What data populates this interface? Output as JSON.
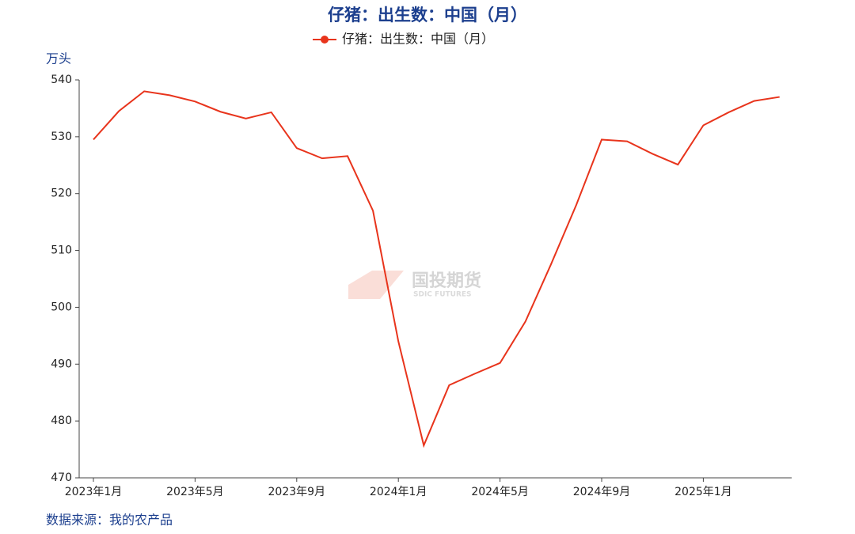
{
  "chart_data": {
    "type": "line",
    "title": "仔猪：出生数：中国（月）",
    "y_label": "万头",
    "source": "数据来源：我的农产品",
    "watermark": {
      "name": "国投期货",
      "subtitle": "SDIC FUTURES"
    },
    "categories": [
      "2023年1月",
      null,
      null,
      null,
      "2023年5月",
      null,
      null,
      null,
      "2023年9月",
      null,
      null,
      null,
      "2024年1月",
      null,
      null,
      null,
      "2024年5月",
      null,
      null,
      null,
      "2024年9月",
      null,
      null,
      null,
      "2025年1月",
      null,
      null,
      null
    ],
    "series": [
      {
        "name": "仔猪：出生数：中国（月）",
        "color": "#e8341c",
        "values": [
          529.5,
          534.5,
          538,
          537.3,
          536.2,
          534.4,
          533.2,
          534.3,
          528,
          526.2,
          526.6,
          517,
          494,
          475.7,
          486.3,
          488.3,
          490.2,
          497.5,
          507.5,
          518,
          529.5,
          529.2,
          527,
          525.1,
          532,
          534.3,
          536.3,
          537
        ]
      }
    ],
    "ylim": [
      470,
      540
    ],
    "yticks": [
      470,
      480,
      490,
      500,
      510,
      520,
      530,
      540
    ],
    "legend": "top"
  }
}
